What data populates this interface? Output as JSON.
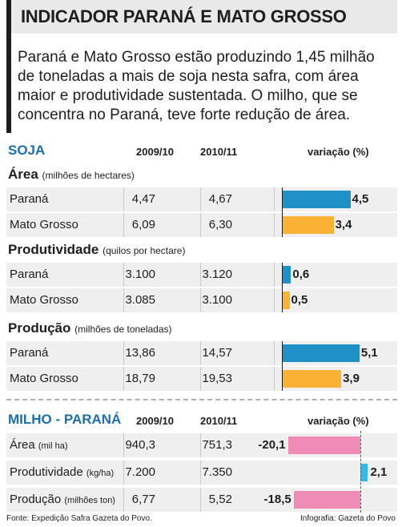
{
  "title": "INDICADOR PARANÁ E MATO GROSSO",
  "intro": "Paraná e Mato Grosso estão produzindo 1,45 milhão de toneladas a mais de soja nesta safra, com área maior e produtividade sustentada. O milho, que se concentra no Paraná, teve forte redução de área.",
  "colors": {
    "soja_parana": "#1f91c6",
    "soja_mato_grosso": "#f9b233",
    "milho_negative": "#ef8cb6",
    "milho_positive": "#33b8e8",
    "section_title": "#1b6fb0"
  },
  "soja": {
    "title": "SOJA",
    "col1": "2009/10",
    "col2": "2010/11",
    "col3": "variação (%)",
    "groups": [
      {
        "name": "Área",
        "unit": "(milhões de hectares)",
        "rows": [
          {
            "label": "Paraná",
            "v1": "4,47",
            "v2": "4,67",
            "var": "4,5"
          },
          {
            "label": "Mato Grosso",
            "v1": "6,09",
            "v2": "6,30",
            "var": "3,4"
          }
        ]
      },
      {
        "name": "Produtividade",
        "unit": "(quilos por hectare)",
        "rows": [
          {
            "label": "Paraná",
            "v1": "3.100",
            "v2": "3.120",
            "var": "0,6"
          },
          {
            "label": "Mato Grosso",
            "v1": "3.085",
            "v2": "3.100",
            "var": "0,5"
          }
        ]
      },
      {
        "name": "Produção",
        "unit": "(milhões de toneladas)",
        "rows": [
          {
            "label": "Paraná",
            "v1": "13,86",
            "v2": "14,57",
            "var": "5,1"
          },
          {
            "label": "Mato Grosso",
            "v1": "18,79",
            "v2": "19,53",
            "var": "3,9"
          }
        ]
      }
    ]
  },
  "milho": {
    "title": "MILHO - PARANÁ",
    "col1": "2009/10",
    "col2": "2010/11",
    "col3": "variação (%)",
    "rows": [
      {
        "label": "Área",
        "unit": "(mil ha)",
        "v1": "940,3",
        "v2": "751,3",
        "var": "-20,1"
      },
      {
        "label": "Produtividade",
        "unit": "(kg/ha)",
        "v1": "7.200",
        "v2": "7.350",
        "var": "2,1"
      },
      {
        "label": "Produção",
        "unit": "(milhões ton)",
        "v1": "6,77",
        "v2": "5,52",
        "var": "-18,5"
      }
    ]
  },
  "footer": {
    "source": "Fonte: Expedição Safra Gazeta do Povo.",
    "credit": "Infografia: Gazeta do Povo"
  },
  "chart_data": [
    {
      "type": "bar",
      "title": "SOJA",
      "ylabel": "variação (%)",
      "categories": [
        "Área - Paraná",
        "Área - Mato Grosso",
        "Produtividade - Paraná",
        "Produtividade - Mato Grosso",
        "Produção - Paraná",
        "Produção - Mato Grosso"
      ],
      "values": [
        4.5,
        3.4,
        0.6,
        0.5,
        5.1,
        3.9
      ]
    },
    {
      "type": "bar",
      "title": "MILHO - PARANÁ",
      "ylabel": "variação (%)",
      "categories": [
        "Área",
        "Produtividade",
        "Produção"
      ],
      "values": [
        -20.1,
        2.1,
        -18.5
      ]
    }
  ]
}
